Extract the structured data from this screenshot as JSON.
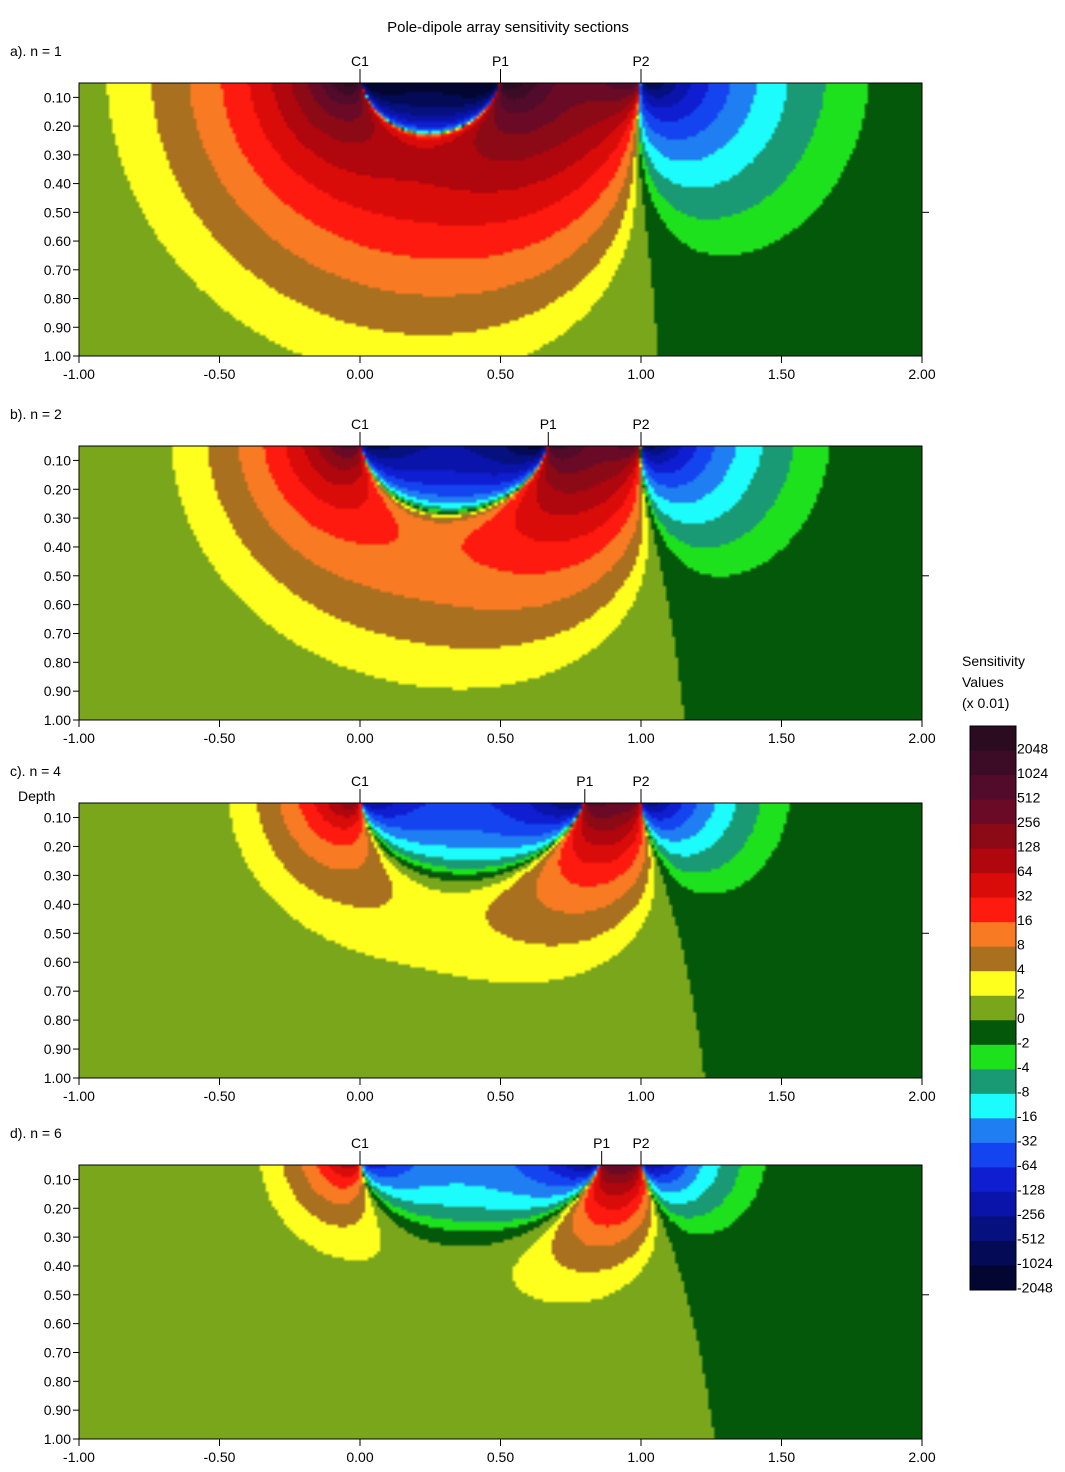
{
  "title": "Pole-dipole array sensitivity sections",
  "depth_label": "Depth",
  "colorbar": {
    "title_lines": [
      "Sensitivity",
      "Values",
      "(x 0.01)"
    ],
    "levels": [
      "2048",
      "1024",
      "512",
      "256",
      "128",
      "64",
      "32",
      "16",
      "8",
      "4",
      "2",
      "0",
      "-2",
      "-4",
      "-8",
      "-16",
      "-32",
      "-64",
      "-128",
      "-256",
      "-512",
      "-1024",
      "-2048"
    ],
    "colors": [
      "#2a0b1f",
      "#3c0c26",
      "#520b2a",
      "#6a0a27",
      "#8b0a16",
      "#b0060e",
      "#da0c0a",
      "#ff1a10",
      "#f87a22",
      "#a8701f",
      "#ffff1e",
      "#7aa61c",
      "#04580a",
      "#1ee11e",
      "#1a9a74",
      "#1dfcfc",
      "#1f7ef2",
      "#1444f0",
      "#0f1ed0",
      "#0a14aa",
      "#06107e",
      "#040a55",
      "#020630"
    ]
  },
  "chart_data": [
    {
      "type": "heatmap",
      "panel_label": "a). n = 1",
      "electrodes": [
        {
          "name": "C1",
          "x": 0.0
        },
        {
          "name": "P1",
          "x": 0.5
        },
        {
          "name": "P2",
          "x": 1.0
        }
      ],
      "n": 1,
      "xlim": [
        -1.0,
        2.0
      ],
      "ylim": [
        1.0,
        0.05
      ],
      "xticks": [
        "-1.00",
        "-0.50",
        "0.00",
        "0.50",
        "1.00",
        "1.50",
        "2.00"
      ],
      "yticks": [
        "0.10",
        "0.20",
        "0.30",
        "0.40",
        "0.50",
        "0.60",
        "0.70",
        "0.80",
        "0.90",
        "1.00"
      ],
      "xlabel": "",
      "ylabel": ""
    },
    {
      "type": "heatmap",
      "panel_label": "b). n = 2",
      "electrodes": [
        {
          "name": "C1",
          "x": 0.0
        },
        {
          "name": "P1",
          "x": 0.67
        },
        {
          "name": "P2",
          "x": 1.0
        }
      ],
      "n": 2,
      "xlim": [
        -1.0,
        2.0
      ],
      "ylim": [
        1.0,
        0.05
      ],
      "xticks": [
        "-1.00",
        "-0.50",
        "0.00",
        "0.50",
        "1.00",
        "1.50",
        "2.00"
      ],
      "yticks": [
        "0.10",
        "0.20",
        "0.30",
        "0.40",
        "0.50",
        "0.60",
        "0.70",
        "0.80",
        "0.90",
        "1.00"
      ],
      "xlabel": "",
      "ylabel": ""
    },
    {
      "type": "heatmap",
      "panel_label": "c). n = 4",
      "electrodes": [
        {
          "name": "C1",
          "x": 0.0
        },
        {
          "name": "P1",
          "x": 0.8
        },
        {
          "name": "P2",
          "x": 1.0
        }
      ],
      "n": 4,
      "xlim": [
        -1.0,
        2.0
      ],
      "ylim": [
        1.0,
        0.05
      ],
      "xticks": [
        "-1.00",
        "-0.50",
        "0.00",
        "0.50",
        "1.00",
        "1.50",
        "2.00"
      ],
      "yticks": [
        "0.10",
        "0.20",
        "0.30",
        "0.40",
        "0.50",
        "0.60",
        "0.70",
        "0.80",
        "0.90",
        "1.00"
      ],
      "xlabel": "",
      "ylabel": "Depth"
    },
    {
      "type": "heatmap",
      "panel_label": "d). n = 6",
      "electrodes": [
        {
          "name": "C1",
          "x": 0.0
        },
        {
          "name": "P1",
          "x": 0.86
        },
        {
          "name": "P2",
          "x": 1.0
        }
      ],
      "n": 6,
      "xlim": [
        -1.0,
        2.0
      ],
      "ylim": [
        1.0,
        0.05
      ],
      "xticks": [
        "-1.00",
        "-0.50",
        "0.00",
        "0.50",
        "1.00",
        "1.50",
        "2.00"
      ],
      "yticks": [
        "0.10",
        "0.20",
        "0.30",
        "0.40",
        "0.50",
        "0.60",
        "0.70",
        "0.80",
        "0.90",
        "1.00"
      ],
      "xlabel": "",
      "ylabel": ""
    }
  ]
}
